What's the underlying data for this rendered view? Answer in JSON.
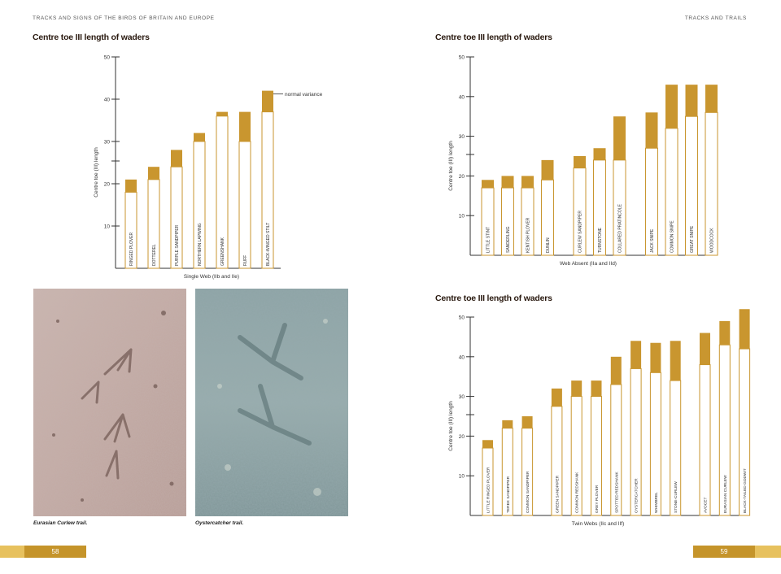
{
  "header": {
    "left": "TRACKS AND SIGNS OF THE BIRDS OF BRITAIN AND EUROPE",
    "right": "TRACKS AND TRAILS"
  },
  "colors": {
    "fill": "#c9962f",
    "outline": "#c9962f",
    "accent_band": "#e7c15e",
    "page_box": "#c5942a"
  },
  "chart_data": [
    {
      "type": "bar",
      "subtype": "floating-range",
      "title": "Centre toe III length of waders",
      "xlabel": "Single Web (IIb and IIe)",
      "ylabel": "Centre toe (III) length",
      "ylim": [
        0,
        50
      ],
      "yticks": [
        10,
        20,
        30,
        40,
        50
      ],
      "annotation": "normal variance",
      "categories": [
        "RINGED PLOVER",
        "DOTTEREL",
        "PURPLE SANDPIPER",
        "NORTHERN LAPWING",
        "GREENSHANK",
        "RUFF",
        "BLACK-WINGED STILT"
      ],
      "min": [
        18,
        21,
        24,
        30,
        36,
        30,
        37
      ],
      "max": [
        21,
        24,
        28,
        32,
        37,
        37,
        42
      ]
    },
    {
      "type": "bar",
      "subtype": "floating-range",
      "title": "Centre toe III length of waders",
      "xlabel": "Web Absent (IIa and IId)",
      "ylabel": "Centre toe (III) length",
      "ylim": [
        0,
        50
      ],
      "yticks": [
        10,
        20,
        30,
        40,
        50
      ],
      "categories": [
        "LITTLE STINT",
        "SANDERLING",
        "KENTISH PLOVER",
        "DUNLIN",
        "CURLEW SANDPIPER",
        "TURNSTONE",
        "COLLARED PRATINCOLE",
        "JACK SNIPE",
        "COMMON SNIPE",
        "GREAT SNIPE",
        "WOODCOCK"
      ],
      "groups": [
        4,
        7
      ],
      "min": [
        17,
        17,
        17,
        19,
        22,
        24,
        24,
        27,
        32,
        35,
        36
      ],
      "max": [
        19,
        20,
        20,
        24,
        25,
        27,
        35,
        36,
        43,
        43,
        43
      ]
    },
    {
      "type": "bar",
      "subtype": "floating-range",
      "title": "Centre toe III length of waders",
      "xlabel": "Twin Webs (IIc and IIf)",
      "ylabel": "Centre toe (III) length",
      "ylim": [
        0,
        50
      ],
      "yticks": [
        10,
        20,
        30,
        40,
        50
      ],
      "categories": [
        "LITTLE RINGED PLOVER",
        "TEREK SANDPIPER",
        "COMMON SANDPIPER",
        "GREEN SANDPIPER",
        "COMMON REDSHANK",
        "GREY PLOVER",
        "SPOTTED REDSHANK",
        "OYSTERCATCHER",
        "WHIMBREL",
        "STONE-CURLEW",
        "AVOCET",
        "EURASIAN CURLEW",
        "BLACK-TAILED GODWIT"
      ],
      "groups": [
        3,
        10
      ],
      "min": [
        17,
        22,
        22,
        27.5,
        30,
        30,
        33,
        37,
        36,
        34,
        38,
        43,
        42
      ],
      "max": [
        19,
        24,
        25,
        32,
        34,
        34,
        40,
        44,
        43.5,
        44,
        46,
        49,
        52
      ]
    }
  ],
  "photos": [
    {
      "caption": "Eurasian Curlew trail."
    },
    {
      "caption": "Oystercatcher trail."
    }
  ],
  "footer": {
    "left_page": "58",
    "right_page": "59"
  }
}
